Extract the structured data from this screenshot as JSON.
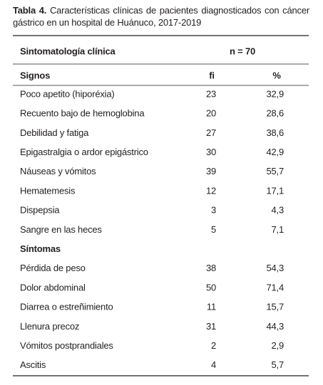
{
  "title": {
    "label": "Tabla 4.",
    "text": "Características clínicas de pacientes diagnosticados con cáncer gástrico en un hospital de Huánuco, 2017-2019"
  },
  "table": {
    "header": {
      "left": "Sintomatología clínica",
      "right": "n = 70"
    },
    "columns": [
      "Signos",
      "fi",
      "%"
    ],
    "groups": [
      {
        "rows": [
          [
            "Poco apetito (hiporéxia)",
            "23",
            "32,9"
          ],
          [
            "Recuento bajo de hemoglobina",
            "20",
            "28,6"
          ],
          [
            "Debilidad y fatiga",
            "27",
            "38,6"
          ],
          [
            "Epigastralgia o ardor epigástrico",
            "30",
            "42,9"
          ],
          [
            "Náuseas y vómitos",
            "39",
            "55,7"
          ],
          [
            "Hematemesis",
            "12",
            "17,1"
          ],
          [
            "Dispepsia",
            "3",
            "4,3"
          ],
          [
            "Sangre en las heces",
            "5",
            "7,1"
          ]
        ]
      },
      {
        "name": "Síntomas",
        "rows": [
          [
            "Pérdida de peso",
            "38",
            "54,3"
          ],
          [
            "Dolor abdominal",
            "50",
            "71,4"
          ],
          [
            "Diarrea o estreñimiento",
            "11",
            "15,7"
          ],
          [
            "Llenura precoz",
            "31",
            "44,3"
          ],
          [
            "Vómitos postprandiales",
            "2",
            "2,9"
          ],
          [
            "Ascitis",
            "4",
            "5,7"
          ]
        ]
      }
    ]
  }
}
